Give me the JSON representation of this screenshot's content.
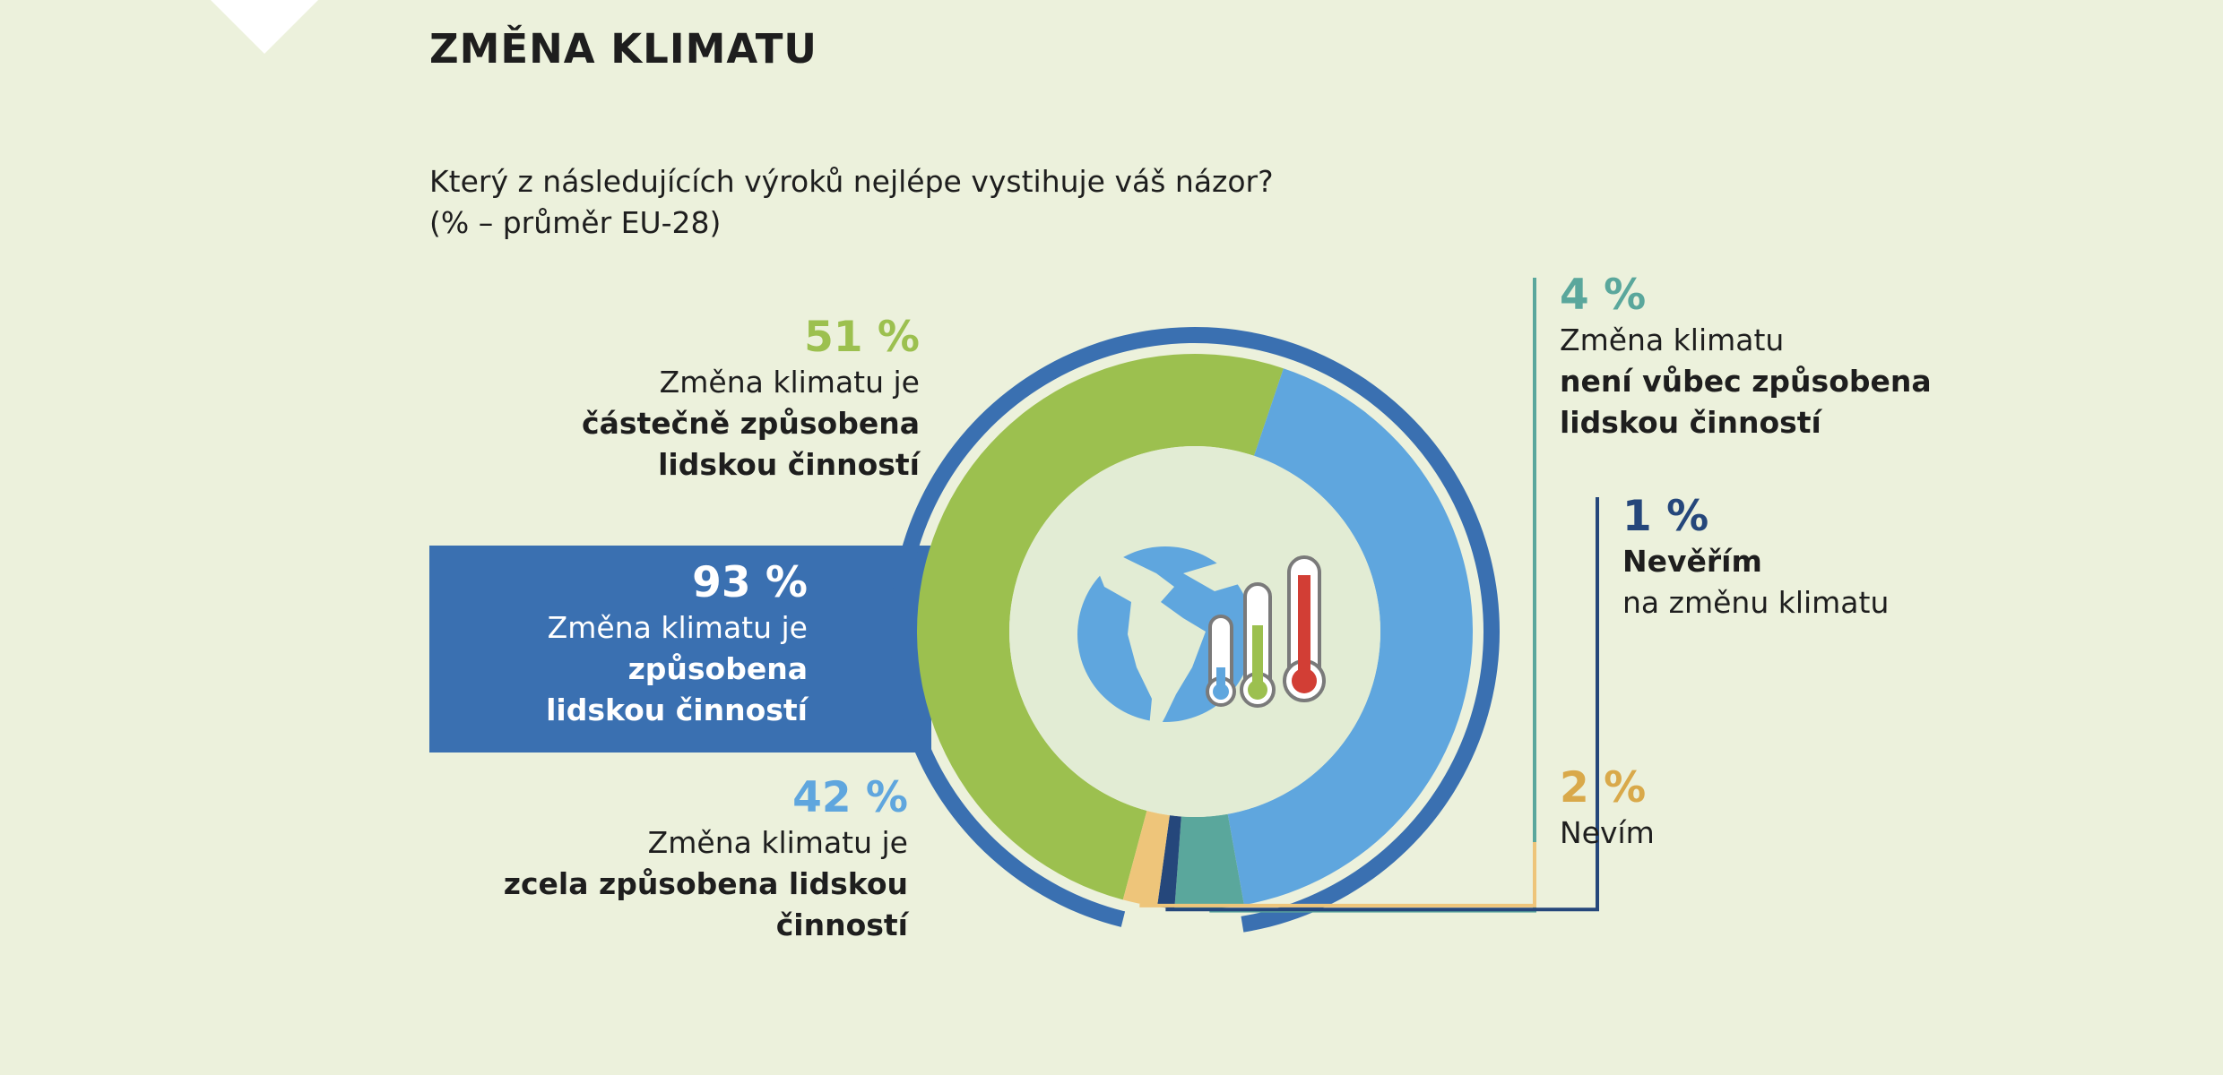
{
  "title": "ZMĚNA KLIMATU",
  "question": {
    "line1": "Který z následujících výroků nejlépe vystihuje váš názor?",
    "line2": "(% – průměr EU-28)"
  },
  "colors": {
    "background": "#ecf1dc",
    "total_blue": "#3a70b1",
    "partly_green": "#9cc04f",
    "fully_lightblue": "#5fa6de",
    "not_teal": "#5aa79c",
    "dont_believe_navy": "#25477b",
    "dont_know_yellow": "#eec57a",
    "inner_disc": "#e2ecd4"
  },
  "icons": [
    "globe-icon",
    "thermometer-icon"
  ],
  "labels": {
    "total": {
      "pct": "93 %",
      "line1": "Změna klimatu je",
      "line2": "způsobena",
      "line3": "lidskou činností"
    },
    "partly": {
      "pct": "51 %",
      "line1": "Změna klimatu je",
      "line2": "částečně způsobena",
      "line3": "lidskou činností"
    },
    "fully": {
      "pct": "42 %",
      "line1": "Změna klimatu je",
      "line2": "zcela způsobena lidskou činností"
    },
    "not_at_all": {
      "pct": "4 %",
      "line1": "Změna klimatu",
      "line2": "není vůbec způsobena",
      "line3": "lidskou činností"
    },
    "dont_believe": {
      "pct": "1 %",
      "line1": "Nevěřím",
      "line2": "na změnu klimatu"
    },
    "dont_know": {
      "pct": "2 %",
      "line1": "Nevím"
    }
  },
  "chart_data": {
    "type": "pie",
    "variant": "donut",
    "unit": "%",
    "categories": [
      "Změna klimatu je částečně způsobena lidskou činností",
      "Změna klimatu je zcela způsobena lidskou činností",
      "Změna klimatu není vůbec způsobena lidskou činností",
      "Nevěřím na změnu klimatu",
      "Nevím"
    ],
    "values": [
      51,
      42,
      4,
      1,
      2
    ],
    "group_total": {
      "label": "Změna klimatu je způsobena lidskou činností",
      "value": 93,
      "members": [
        0,
        1
      ]
    }
  }
}
